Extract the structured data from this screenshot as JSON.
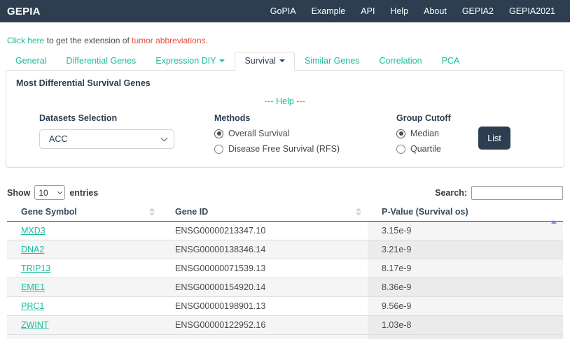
{
  "navbar": {
    "brand": "GEPIA",
    "links": [
      "GoPIA",
      "Example",
      "API",
      "Help",
      "About",
      "GEPIA2",
      "GEPIA2021"
    ]
  },
  "notice": {
    "link_text": "Click here",
    "middle_text": " to get the extension of ",
    "highlight_text": "tumor abbreviations."
  },
  "tabs": [
    {
      "label": "General",
      "caret": false,
      "active": false
    },
    {
      "label": "Differential Genes",
      "caret": false,
      "active": false
    },
    {
      "label": "Expression DIY",
      "caret": true,
      "active": false
    },
    {
      "label": "Survival",
      "caret": true,
      "active": true
    },
    {
      "label": "Similar Genes",
      "caret": false,
      "active": false
    },
    {
      "label": "Correlation",
      "caret": false,
      "active": false
    },
    {
      "label": "PCA",
      "caret": false,
      "active": false
    }
  ],
  "panel": {
    "title": "Most Differential Survival Genes",
    "help_label": "--- Help ---",
    "datasets": {
      "label": "Datasets Selection",
      "value": "ACC"
    },
    "methods": {
      "label": "Methods",
      "options": [
        {
          "label": "Overall Survival",
          "selected": true
        },
        {
          "label": "Disease Free Survival (RFS)",
          "selected": false
        }
      ]
    },
    "cutoff": {
      "label": "Group Cutoff",
      "options": [
        {
          "label": "Median",
          "selected": true
        },
        {
          "label": "Quartile",
          "selected": false
        }
      ]
    },
    "list_button": "List"
  },
  "table_controls": {
    "show_label": "Show",
    "entries_value": "10",
    "entries_label": "entries",
    "search_label": "Search:",
    "search_value": ""
  },
  "table": {
    "columns": [
      "Gene Symbol",
      "Gene ID",
      "P-Value (Survival os)"
    ],
    "sort": {
      "column": "P-Value (Survival os)",
      "direction": "asc"
    },
    "rows": [
      {
        "symbol": "MXD3",
        "id": "ENSG00000213347.10",
        "pvalue": "3.15e-9"
      },
      {
        "symbol": "DNA2",
        "id": "ENSG00000138346.14",
        "pvalue": "3.21e-9"
      },
      {
        "symbol": "TRIP13",
        "id": "ENSG00000071539.13",
        "pvalue": "8.17e-9"
      },
      {
        "symbol": "EME1",
        "id": "ENSG00000154920.14",
        "pvalue": "8.36e-9"
      },
      {
        "symbol": "PRC1",
        "id": "ENSG00000198901.13",
        "pvalue": "9.56e-9"
      },
      {
        "symbol": "ZWINT",
        "id": "ENSG00000122952.16",
        "pvalue": "1.03e-8"
      }
    ]
  },
  "colors": {
    "navbar_bg": "#2c3e50",
    "accent_teal": "#18bc9c",
    "alert_red": "#e74c3c",
    "button_bg": "#2c3e50",
    "sort_active_arrow": "#7e8bea"
  }
}
